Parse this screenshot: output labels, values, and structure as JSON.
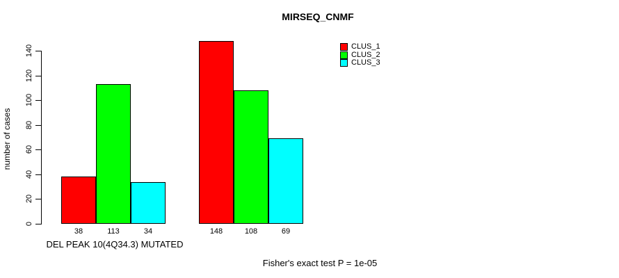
{
  "chart_data": {
    "type": "bar",
    "title": "MIRSEQ_CNMF",
    "ylabel": "number of cases",
    "xlabel": "",
    "ylim": [
      0,
      140
    ],
    "yticks": [
      0,
      20,
      40,
      60,
      80,
      100,
      120,
      140
    ],
    "grid": false,
    "categories": [
      "DEL PEAK 10(4Q34.3) MUTATED",
      ""
    ],
    "series": [
      {
        "name": "CLUS_1",
        "color": "#ff0000",
        "values": [
          38,
          148
        ]
      },
      {
        "name": "CLUS_2",
        "color": "#00ff00",
        "values": [
          113,
          108
        ]
      },
      {
        "name": "CLUS_3",
        "color": "#00ffff",
        "values": [
          34,
          69
        ]
      }
    ],
    "bar_value_labels": [
      [
        "38",
        "113",
        "34"
      ],
      [
        "148",
        "108",
        "69"
      ]
    ],
    "legend": {
      "position": "top-right",
      "entries": [
        "CLUS_1",
        "CLUS_2",
        "CLUS_3"
      ]
    },
    "annotation": "Fisher's exact test P = 1e-05",
    "colors": {
      "bar_border": "#000000",
      "axis": "#000000",
      "background": "#ffffff"
    }
  }
}
